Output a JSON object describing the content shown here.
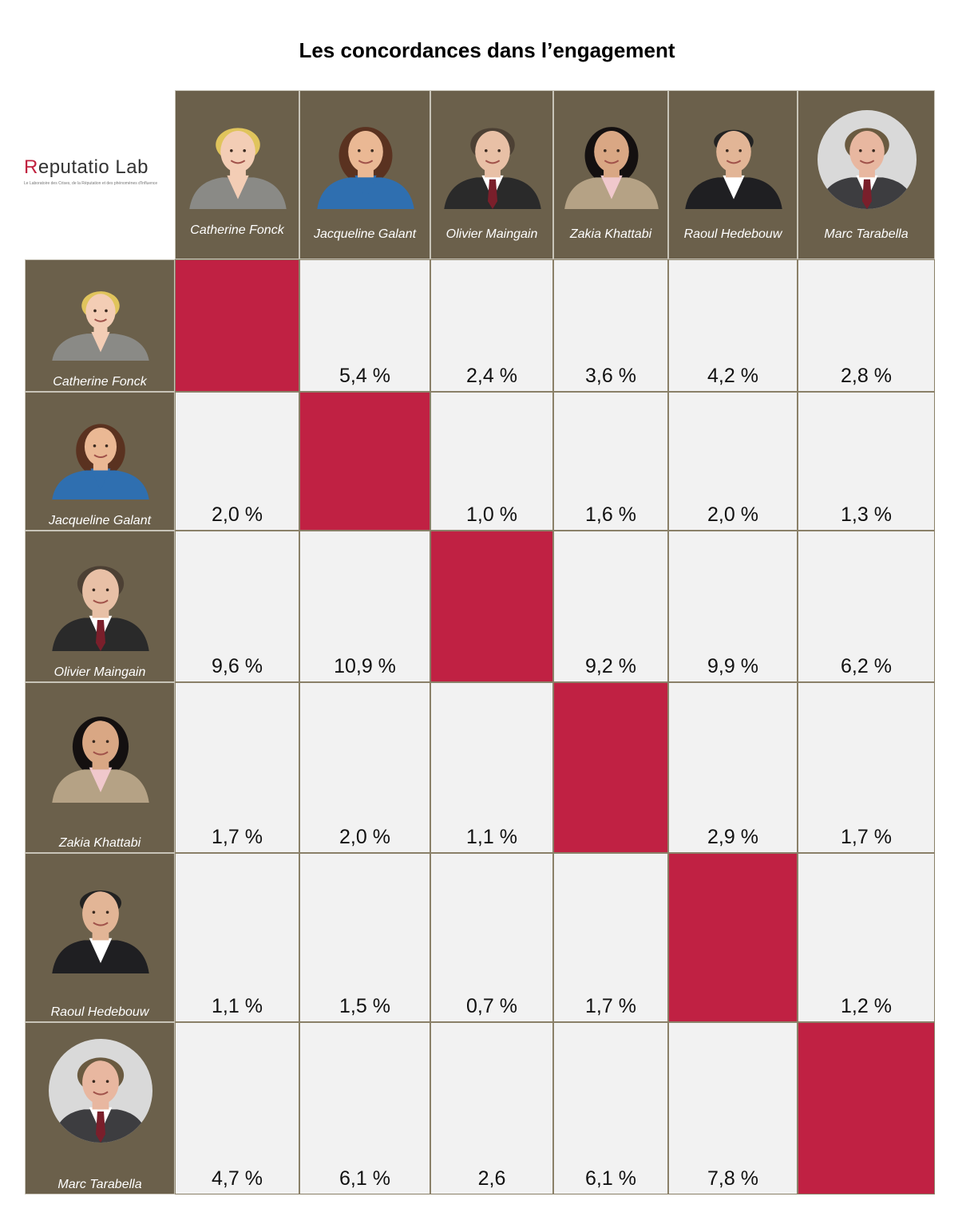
{
  "title": "Les concordances dans l’engagement",
  "logo": {
    "brand_first": "R",
    "brand_rest": "eputatio Lab",
    "tagline": "Le Laboratoire des Crises, de la Réputation et des phénomènes d'Influence"
  },
  "colors": {
    "header_bg": "#6b604b",
    "diagonal": "#c02143",
    "cell_bg": "#f2f2f2",
    "text_light": "#ffffff"
  },
  "chart_data": {
    "type": "heatmap",
    "title": "Les concordances dans l’engagement",
    "columns": [
      "Catherine Fonck",
      "Jacqueline Galant",
      "Olivier Maingain",
      "Zakia Khattabi",
      "Raoul Hedebouw",
      "Marc Tarabella"
    ],
    "rows": [
      "Catherine Fonck",
      "Jacqueline Galant",
      "Olivier Maingain",
      "Zakia Khattabi",
      "Raoul Hedebouw",
      "Marc Tarabella"
    ],
    "cells": [
      [
        "",
        "5,4 %",
        "2,4 %",
        "3,6 %",
        "4,2 %",
        "2,8 %"
      ],
      [
        "2,0 %",
        "",
        "1,0 %",
        "1,6 %",
        "2,0 %",
        "1,3 %"
      ],
      [
        "9,6 %",
        "10,9 %",
        "",
        "9,2 %",
        "9,9 %",
        "6,2 %"
      ],
      [
        "1,7 %",
        "2,0 %",
        "1,1 %",
        "",
        "2,9 %",
        "1,7 %"
      ],
      [
        "1,1 %",
        "1,5 %",
        "0,7 %",
        "1,7 %",
        "",
        "1,2 %"
      ],
      [
        "4,7 %",
        "6,1 %",
        "2,6",
        "6,1 %",
        "7,8 %",
        ""
      ]
    ],
    "diagonal_highlight": true
  }
}
